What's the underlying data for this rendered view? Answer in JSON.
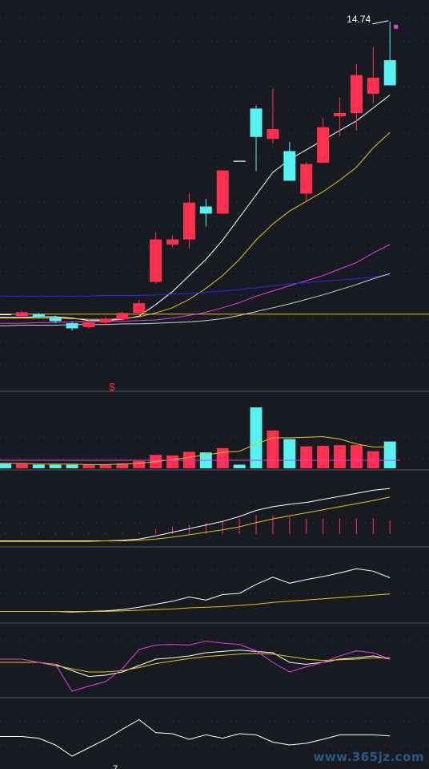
{
  "chart_data": [
    {
      "type": "candlestick",
      "panel": "price",
      "ylim": [
        9.7,
        14.9
      ],
      "candles": [
        {
          "o": 10.2,
          "c": 10.2,
          "h": 10.2,
          "l": 10.2
        },
        {
          "o": 10.17,
          "c": 10.23,
          "h": 10.25,
          "l": 10.15
        },
        {
          "o": 10.2,
          "c": 10.16,
          "h": 10.22,
          "l": 10.13
        },
        {
          "o": 10.15,
          "c": 10.09,
          "h": 10.18,
          "l": 10.06
        },
        {
          "o": 10.06,
          "c": 9.98,
          "h": 10.09,
          "l": 9.95
        },
        {
          "o": 10.0,
          "c": 10.07,
          "h": 10.12,
          "l": 9.98
        },
        {
          "o": 10.07,
          "c": 10.13,
          "h": 10.16,
          "l": 10.05
        },
        {
          "o": 10.12,
          "c": 10.22,
          "h": 10.24,
          "l": 10.1
        },
        {
          "o": 10.22,
          "c": 10.37,
          "h": 10.42,
          "l": 10.2
        },
        {
          "o": 10.7,
          "c": 11.36,
          "h": 11.48,
          "l": 10.68
        },
        {
          "o": 11.28,
          "c": 11.36,
          "h": 11.42,
          "l": 11.24
        },
        {
          "o": 11.36,
          "c": 11.93,
          "h": 12.08,
          "l": 11.22
        },
        {
          "o": 11.87,
          "c": 11.76,
          "h": 11.99,
          "l": 11.56
        },
        {
          "o": 11.76,
          "c": 12.43,
          "h": 12.43,
          "l": 11.76
        },
        {
          "o": 12.58,
          "c": 12.58,
          "h": 12.58,
          "l": 12.58
        },
        {
          "o": 13.39,
          "c": 12.95,
          "h": 13.44,
          "l": 12.42
        },
        {
          "o": 12.92,
          "c": 13.07,
          "h": 13.7,
          "l": 12.85
        },
        {
          "o": 12.73,
          "c": 12.27,
          "h": 12.87,
          "l": 12.27
        },
        {
          "o": 12.07,
          "c": 12.53,
          "h": 12.56,
          "l": 11.96
        },
        {
          "o": 12.55,
          "c": 13.1,
          "h": 13.25,
          "l": 12.55
        },
        {
          "o": 13.27,
          "c": 13.32,
          "h": 13.56,
          "l": 12.96
        },
        {
          "o": 13.32,
          "c": 13.91,
          "h": 14.08,
          "l": 13.05
        },
        {
          "o": 13.62,
          "c": 13.87,
          "h": 14.34,
          "l": 13.47
        },
        {
          "o": 14.14,
          "c": 13.75,
          "h": 14.74,
          "l": 13.75
        }
      ],
      "ma_lines": [
        {
          "color": "#ffffff",
          "values": [
            10.15,
            10.15,
            10.16,
            10.16,
            10.14,
            10.1,
            10.1,
            10.12,
            10.17,
            10.35,
            10.55,
            10.8,
            11.05,
            11.35,
            11.7,
            12.05,
            12.4,
            12.6,
            12.75,
            12.9,
            13.05,
            13.2,
            13.4,
            13.6
          ]
        },
        {
          "color": "#e6c21a",
          "values": [
            10.14,
            10.14,
            10.14,
            10.14,
            10.13,
            10.12,
            10.12,
            10.13,
            10.16,
            10.22,
            10.3,
            10.43,
            10.6,
            10.8,
            11.05,
            11.35,
            11.6,
            11.8,
            11.95,
            12.1,
            12.28,
            12.48,
            12.78,
            13.02
          ]
        },
        {
          "color": "#e23ce0",
          "values": [
            10.06,
            10.06,
            10.07,
            10.07,
            10.08,
            10.08,
            10.09,
            10.09,
            10.1,
            10.11,
            10.14,
            10.18,
            10.23,
            10.3,
            10.38,
            10.48,
            10.56,
            10.64,
            10.72,
            10.8,
            10.9,
            11.0,
            11.15,
            11.28
          ]
        },
        {
          "color": "#2b2be0",
          "values": [
            10.48,
            10.48,
            10.48,
            10.48,
            10.48,
            10.48,
            10.49,
            10.49,
            10.49,
            10.5,
            10.51,
            10.52,
            10.54,
            10.56,
            10.58,
            10.61,
            10.64,
            10.67,
            10.69,
            10.71,
            10.73,
            10.75,
            10.78,
            10.81
          ]
        },
        {
          "color": "#cfcfcf",
          "values": [
            10.02,
            10.03,
            10.03,
            10.03,
            10.04,
            10.04,
            10.04,
            10.05,
            10.05,
            10.06,
            10.07,
            10.08,
            10.1,
            10.13,
            10.18,
            10.24,
            10.3,
            10.36,
            10.43,
            10.5,
            10.58,
            10.66,
            10.75,
            10.83
          ]
        }
      ],
      "hline": 10.2,
      "annotations": {
        "high_label": "14.74",
        "signal_marker": "$"
      }
    },
    {
      "type": "bar",
      "panel": "volume",
      "ylim": [
        0,
        100
      ],
      "values": [
        8,
        7,
        6,
        6,
        6,
        6,
        6,
        8,
        12,
        22,
        21,
        27,
        26,
        33,
        6,
        100,
        62,
        48,
        36,
        37,
        38,
        38,
        28,
        44
      ],
      "avg_line": [
        8,
        8,
        7,
        7,
        7,
        6,
        6,
        7,
        8,
        11,
        14,
        18,
        22,
        26,
        28,
        40,
        50,
        50,
        51,
        52,
        48,
        40,
        35,
        35
      ]
    },
    {
      "type": "line",
      "panel": "macd",
      "ylim": [
        0,
        100
      ],
      "series": [
        {
          "color": "#ffffff",
          "values": [
            2,
            2,
            2,
            2,
            2,
            2,
            2,
            3,
            5,
            10,
            16,
            22,
            28,
            34,
            42,
            52,
            58,
            62,
            65,
            70,
            75,
            80,
            85,
            88
          ]
        },
        {
          "color": "#e6c21a",
          "values": [
            1,
            1,
            1,
            1,
            1,
            1,
            2,
            2,
            3,
            5,
            8,
            12,
            16,
            20,
            25,
            32,
            38,
            43,
            48,
            53,
            58,
            63,
            68,
            74
          ]
        }
      ],
      "histogram": [
        1,
        1,
        1,
        1,
        1,
        1,
        1,
        1,
        2,
        5,
        8,
        10,
        12,
        14,
        17,
        21,
        20,
        19,
        17,
        17,
        17,
        17,
        17,
        15
      ]
    },
    {
      "type": "line",
      "panel": "indicator-4",
      "ylim": [
        0,
        100
      ],
      "series": [
        {
          "color": "#ffffff",
          "values": [
            10,
            10,
            10,
            10,
            9,
            10,
            11,
            13,
            17,
            22,
            27,
            34,
            29,
            38,
            40,
            55,
            67,
            57,
            63,
            68,
            74,
            81,
            77,
            66
          ]
        },
        {
          "color": "#e6c21a",
          "values": [
            10,
            10,
            10,
            10,
            10,
            10,
            10,
            11,
            12,
            13,
            14,
            16,
            17,
            18,
            20,
            22,
            25,
            27,
            29,
            31,
            33,
            35,
            37,
            39
          ]
        }
      ]
    },
    {
      "type": "line",
      "panel": "kdj",
      "ylim": [
        0,
        100
      ],
      "series": [
        {
          "color": "#ffffff",
          "values": [
            55,
            55,
            55,
            52,
            42,
            33,
            35,
            40,
            50,
            60,
            62,
            65,
            70,
            72,
            74,
            72,
            70,
            55,
            52,
            55,
            60,
            62,
            65,
            60
          ]
        },
        {
          "color": "#e6c21a",
          "values": [
            55,
            55,
            55,
            50,
            45,
            40,
            40,
            42,
            47,
            53,
            57,
            61,
            64,
            66,
            68,
            69,
            68,
            64,
            60,
            58,
            59,
            60,
            62,
            62
          ]
        },
        {
          "color": "#e23ce0",
          "values": [
            60,
            60,
            55,
            52,
            10,
            18,
            25,
            45,
            75,
            82,
            83,
            82,
            88,
            85,
            83,
            73,
            55,
            40,
            48,
            55,
            65,
            73,
            70,
            60
          ]
        }
      ]
    },
    {
      "type": "line",
      "panel": "indicator-6",
      "ylim": [
        0,
        100
      ],
      "series": [
        {
          "color": "#ffffff",
          "values": [
            45,
            45,
            42,
            30,
            10,
            25,
            40,
            58,
            75,
            52,
            50,
            40,
            48,
            42,
            50,
            48,
            35,
            30,
            33,
            40,
            48,
            48,
            48,
            46
          ]
        }
      ],
      "x_tick_label": "7"
    }
  ],
  "colors": {
    "background": "#171a21",
    "grid": "#3b3f4a",
    "up": "#ff2f4f",
    "down": "#56f2f2",
    "text": "#ffffff",
    "signal": "#ff3030",
    "marker": "#e23ce0"
  },
  "watermark": "www.365jz.com"
}
